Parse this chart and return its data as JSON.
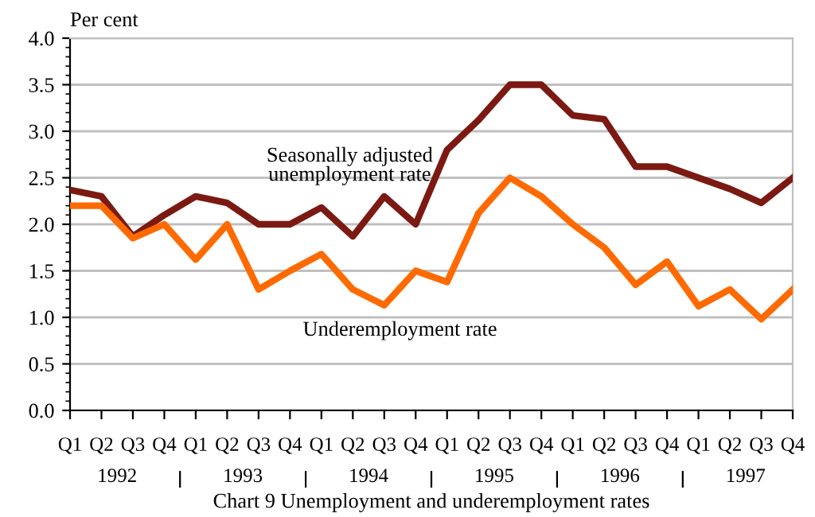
{
  "chart_data": {
    "type": "line",
    "title": "Chart 9 Unemployment and underemployment rates",
    "ylabel": "Per cent",
    "categories": [
      "Q1",
      "Q2",
      "Q3",
      "Q4",
      "Q1",
      "Q2",
      "Q3",
      "Q4",
      "Q1",
      "Q2",
      "Q3",
      "Q4",
      "Q1",
      "Q2",
      "Q3",
      "Q4",
      "Q1",
      "Q2",
      "Q3",
      "Q4",
      "Q1",
      "Q2",
      "Q3",
      "Q4"
    ],
    "series": [
      {
        "name": "Seasonally adjusted unemployment rate",
        "color": "#7b1a12",
        "values": [
          2.37,
          2.3,
          1.87,
          2.1,
          2.3,
          2.23,
          2.0,
          2.0,
          2.18,
          1.87,
          2.3,
          2.0,
          2.8,
          3.12,
          3.5,
          3.5,
          3.17,
          3.13,
          2.62,
          2.62,
          2.5,
          2.38,
          2.23,
          2.5
        ]
      },
      {
        "name": "Underemployment rate",
        "color": "#ff6a00",
        "values": [
          2.2,
          2.2,
          1.85,
          2.0,
          1.62,
          2.0,
          1.3,
          1.5,
          1.68,
          1.3,
          1.13,
          1.5,
          1.38,
          2.12,
          2.5,
          2.3,
          2.0,
          1.75,
          1.35,
          1.6,
          1.12,
          1.3,
          0.98,
          1.3
        ]
      }
    ],
    "ylim": [
      0,
      4
    ],
    "yticks": [
      {
        "value": 0,
        "label": "0.0"
      },
      {
        "value": 0.5,
        "label": "0.5"
      },
      {
        "value": 1,
        "label": "1.0"
      },
      {
        "value": 1.5,
        "label": "1.5"
      },
      {
        "value": 2,
        "label": "2.0"
      },
      {
        "value": 2.5,
        "label": "2.5"
      },
      {
        "value": 3,
        "label": "3.0"
      },
      {
        "value": 3.5,
        "label": "3.5"
      },
      {
        "value": 4,
        "label": "4.0"
      }
    ],
    "annotations": [
      "1992",
      "1993",
      "1994",
      "1995",
      "1996",
      "1997"
    ],
    "grid": "y",
    "legend": false,
    "marker": "none",
    "line_style": "solid"
  }
}
